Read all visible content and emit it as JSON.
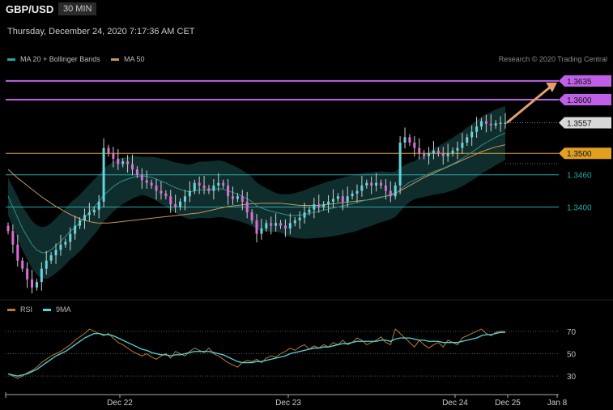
{
  "header": {
    "symbol": "GBP/USD",
    "timeframe": "30 MIN",
    "datetime": "Thursday, December 24, 2020 7:17:36 AM CET",
    "credit": "Research © 2020 Trading Central"
  },
  "legend": {
    "bb_label": "MA 20 + Bollinger Bands",
    "ma50_label": "MA 50",
    "rsi_label": "RSI",
    "rsi9_label": "9MA"
  },
  "colors": {
    "bg": "#000000",
    "up": "#62d6dc",
    "down": "#e06ad8",
    "bb_fill": "#0f2d2d",
    "ma20": "#2e8f88",
    "ma50": "#c8965a",
    "resistance": "#c060e8",
    "pivot": "#e0a020",
    "support": "#2aa7a7",
    "rsi": "#c07a2a",
    "rsi9": "#4fd8e0",
    "arrow": "#e0a070"
  },
  "chart_data": [
    {
      "type": "candlestick",
      "y_range": [
        1.323,
        1.3665
      ],
      "levels": [
        {
          "value": 1.3635,
          "label": "1.3635",
          "kind": "resistance"
        },
        {
          "value": 1.36,
          "label": "1.3600",
          "kind": "resistance"
        },
        {
          "value": 1.3557,
          "label": "1.3557",
          "kind": "last"
        },
        {
          "value": 1.35,
          "label": "1.3500",
          "kind": "pivot"
        },
        {
          "value": 1.346,
          "label": "1.3460",
          "kind": "support"
        },
        {
          "value": 1.34,
          "label": "1.3400",
          "kind": "support"
        }
      ],
      "x_ticks": [
        "Dec 22",
        "Dec 23",
        "Dec 24",
        "Dec 25",
        "Jan 8"
      ],
      "closes": [
        1.3355,
        1.333,
        1.33,
        1.3285,
        1.3265,
        1.325,
        1.326,
        1.3285,
        1.33,
        1.331,
        1.332,
        1.333,
        1.3335,
        1.335,
        1.3365,
        1.3375,
        1.3385,
        1.339,
        1.3395,
        1.341,
        1.351,
        1.35,
        1.349,
        1.348,
        1.3485,
        1.348,
        1.347,
        1.346,
        1.345,
        1.3445,
        1.344,
        1.343,
        1.3425,
        1.342,
        1.3405,
        1.34,
        1.341,
        1.342,
        1.343,
        1.3445,
        1.344,
        1.3435,
        1.343,
        1.344,
        1.3445,
        1.344,
        1.342,
        1.3415,
        1.342,
        1.341,
        1.339,
        1.3375,
        1.335,
        1.336,
        1.337,
        1.3365,
        1.337,
        1.3365,
        1.336,
        1.337,
        1.3375,
        1.338,
        1.339,
        1.3395,
        1.3405,
        1.34,
        1.3405,
        1.341,
        1.3415,
        1.342,
        1.341,
        1.342,
        1.3425,
        1.343,
        1.344,
        1.3445,
        1.344,
        1.3445,
        1.344,
        1.343,
        1.342,
        1.344,
        1.352,
        1.353,
        1.352,
        1.351,
        1.35,
        1.3495,
        1.35,
        1.3505,
        1.35,
        1.3495,
        1.35,
        1.3505,
        1.351,
        1.352,
        1.353,
        1.354,
        1.355,
        1.356,
        1.3555,
        1.3552,
        1.3556,
        1.3557,
        1.3557
      ],
      "ma20": [
        1.342,
        1.34,
        1.338,
        1.336,
        1.3345,
        1.333,
        1.332,
        1.3315,
        1.3315,
        1.332,
        1.3328,
        1.3336,
        1.3345,
        1.3355,
        1.3362,
        1.337,
        1.338,
        1.339,
        1.34,
        1.341,
        1.3422,
        1.343,
        1.3438,
        1.3444,
        1.3449,
        1.3452,
        1.3455,
        1.3457,
        1.3458,
        1.3457,
        1.3455,
        1.3452,
        1.3448,
        1.3445,
        1.344,
        1.3436,
        1.3433,
        1.343,
        1.3428,
        1.343,
        1.3432,
        1.3432,
        1.3432,
        1.3433,
        1.3434,
        1.3433,
        1.343,
        1.3427,
        1.3424,
        1.342,
        1.3415,
        1.341,
        1.3402,
        1.3398,
        1.3395,
        1.3392,
        1.339,
        1.3388,
        1.3386,
        1.3384,
        1.3384,
        1.3385,
        1.3386,
        1.3388,
        1.339,
        1.3392,
        1.3394,
        1.3396,
        1.3398,
        1.34,
        1.3402,
        1.3404,
        1.3406,
        1.3408,
        1.3411,
        1.3413,
        1.3415,
        1.3417,
        1.3419,
        1.342,
        1.3421,
        1.3424,
        1.3432,
        1.344,
        1.3446,
        1.345,
        1.3454,
        1.3458,
        1.3462,
        1.3466,
        1.3469,
        1.3472,
        1.3476,
        1.348,
        1.3485,
        1.349,
        1.3496,
        1.3502,
        1.3508,
        1.3515,
        1.352,
        1.3525,
        1.353,
        1.3534,
        1.3538
      ],
      "ma50": [
        1.347,
        1.3462,
        1.3454,
        1.3447,
        1.344,
        1.3433,
        1.3426,
        1.3419,
        1.3413,
        1.3407,
        1.3401,
        1.3396,
        1.3391,
        1.3386,
        1.3382,
        1.3378,
        1.3375,
        1.3373,
        1.3371,
        1.337,
        1.337,
        1.337,
        1.3371,
        1.3372,
        1.3373,
        1.3374,
        1.3375,
        1.3376,
        1.3377,
        1.3378,
        1.3379,
        1.338,
        1.3381,
        1.3382,
        1.3383,
        1.3384,
        1.3385,
        1.3386,
        1.3387,
        1.3388,
        1.3389,
        1.3391,
        1.3393,
        1.3395,
        1.3397,
        1.3399,
        1.3401,
        1.3402,
        1.3403,
        1.3404,
        1.3405,
        1.3406,
        1.3406,
        1.3407,
        1.3407,
        1.3407,
        1.3407,
        1.3407,
        1.3406,
        1.3405,
        1.3404,
        1.3403,
        1.3403,
        1.3403,
        1.3403,
        1.3403,
        1.3404,
        1.3405,
        1.3406,
        1.3407,
        1.3408,
        1.3409,
        1.341,
        1.3411,
        1.3412,
        1.3413,
        1.3414,
        1.3416,
        1.3418,
        1.342,
        1.3423,
        1.3426,
        1.343,
        1.3435,
        1.344,
        1.3445,
        1.345,
        1.3455,
        1.3459,
        1.3463,
        1.3467,
        1.3471,
        1.3475,
        1.3479,
        1.3483,
        1.3487,
        1.3491,
        1.3495,
        1.3499,
        1.3503,
        1.3506,
        1.3509,
        1.3512,
        1.3514,
        1.3516
      ]
    },
    {
      "type": "line",
      "title": "RSI",
      "y_range": [
        20,
        80
      ],
      "y_ticks": [
        70,
        50,
        30
      ],
      "rsi": [
        32,
        30,
        28,
        30,
        33,
        35,
        38,
        42,
        45,
        48,
        50,
        52,
        55,
        58,
        62,
        65,
        68,
        72,
        70,
        68,
        66,
        68,
        64,
        60,
        58,
        55,
        52,
        50,
        48,
        50,
        47,
        45,
        48,
        50,
        46,
        52,
        50,
        48,
        52,
        55,
        53,
        51,
        55,
        50,
        48,
        45,
        42,
        40,
        38,
        42,
        44,
        43,
        45,
        42,
        46,
        48,
        47,
        50,
        52,
        55,
        53,
        56,
        58,
        54,
        57,
        55,
        58,
        56,
        60,
        58,
        62,
        58,
        60,
        64,
        62,
        58,
        60,
        62,
        65,
        60,
        58,
        72,
        68,
        64,
        60,
        56,
        62,
        58,
        55,
        58,
        60,
        56,
        62,
        60,
        58,
        64,
        66,
        68,
        70,
        72,
        68,
        66,
        69,
        70,
        70
      ],
      "rsi9": [
        32,
        31,
        30,
        31,
        32,
        34,
        36,
        39,
        42,
        45,
        48,
        50,
        52,
        55,
        58,
        61,
        64,
        66,
        68,
        68,
        67,
        67,
        66,
        64,
        62,
        60,
        58,
        56,
        54,
        53,
        51,
        50,
        49,
        49,
        48,
        49,
        49,
        50,
        51,
        52,
        52,
        52,
        52,
        51,
        50,
        49,
        47,
        45,
        43,
        42,
        42,
        42,
        43,
        43,
        44,
        45,
        46,
        47,
        48,
        50,
        51,
        52,
        53,
        54,
        55,
        55,
        56,
        56,
        57,
        58,
        59,
        59,
        60,
        61,
        61,
        61,
        61,
        61,
        62,
        62,
        61,
        63,
        64,
        64,
        64,
        63,
        62,
        62,
        61,
        61,
        61,
        60,
        60,
        60,
        60,
        61,
        62,
        63,
        64,
        66,
        67,
        67,
        68,
        69,
        69
      ]
    }
  ]
}
